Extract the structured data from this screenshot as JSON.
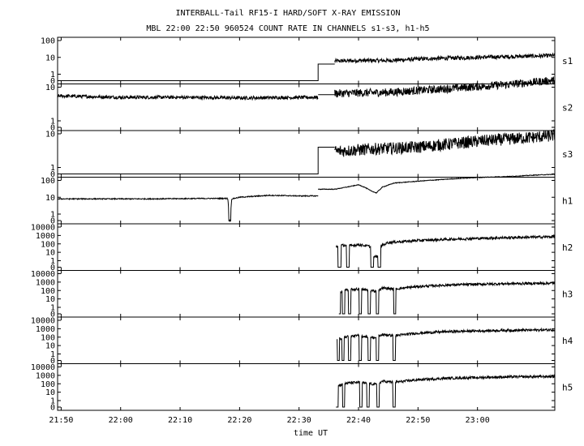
{
  "chart_data": {
    "type": "line",
    "title": "INTERBALL-Tail RF15-I HARD/SOFT X-RAY EMISSION",
    "subtitle": "MBL 22:00 22:50 960524  COUNT RATE IN CHANNELS s1-s3, h1-h5",
    "xlabel": "time UT",
    "x_ticks": [
      "21:50",
      "22:00",
      "22:10",
      "22:20",
      "22:30",
      "22:40",
      "22:50",
      "23:00"
    ],
    "x_range_min": [
      -10.6,
      73.0
    ],
    "y_scale": "log",
    "grid": false,
    "panels": [
      {
        "name": "s1",
        "yticks": [
          "100",
          "10",
          "1",
          "0"
        ],
        "ytick_values": [
          100,
          10,
          1,
          0
        ],
        "segments": [
          {
            "points": [
              [
                -10.6,
                0
              ],
              [
                33.2,
                0
              ],
              [
                33.2,
                4
              ],
              [
                36,
                4
              ]
            ]
          },
          {
            "points": [
              [
                36,
                6
              ],
              [
                40,
                6.5
              ],
              [
                45,
                6.5
              ],
              [
                50,
                8
              ],
              [
                55,
                9
              ],
              [
                60,
                10
              ],
              [
                65,
                11
              ],
              [
                70,
                12
              ],
              [
                73,
                13
              ]
            ],
            "noise": 0.12
          }
        ]
      },
      {
        "name": "s2",
        "yticks": [
          "10",
          "1",
          "0"
        ],
        "ytick_values": [
          10,
          1,
          0
        ],
        "segments": [
          {
            "points": [
              [
                -10.6,
                5.5
              ],
              [
                0,
                5
              ],
              [
                10,
                5
              ],
              [
                20,
                4.8
              ],
              [
                33.2,
                5
              ]
            ],
            "noise": 0.05
          },
          {
            "points": [
              [
                33.2,
                6
              ],
              [
                36,
                6
              ]
            ]
          },
          {
            "points": [
              [
                36,
                6.5
              ],
              [
                45,
                7
              ],
              [
                55,
                9
              ],
              [
                65,
                12
              ],
              [
                73,
                16
              ]
            ],
            "noise": 0.12
          }
        ]
      },
      {
        "name": "s3",
        "yticks": [
          "10",
          "1",
          "0"
        ],
        "ytick_values": [
          10,
          1,
          0
        ],
        "segments": [
          {
            "points": [
              [
                -10.6,
                0
              ],
              [
                33.2,
                0
              ],
              [
                33.2,
                4
              ],
              [
                36,
                4
              ]
            ]
          },
          {
            "points": [
              [
                36,
                3
              ],
              [
                42,
                3.5
              ],
              [
                50,
                4
              ],
              [
                60,
                6
              ],
              [
                70,
                8
              ],
              [
                73,
                9
              ]
            ],
            "noise": 0.18
          }
        ]
      },
      {
        "name": "h1",
        "yticks": [
          "100",
          "10",
          "1",
          "0"
        ],
        "ytick_values": [
          100,
          10,
          1,
          0
        ],
        "segments": [
          {
            "points": [
              [
                -10.6,
                8
              ],
              [
                5,
                8
              ],
              [
                15,
                8.5
              ],
              [
                18,
                8.5
              ],
              [
                18.2,
                0
              ],
              [
                18.5,
                0
              ],
              [
                18.7,
                8
              ],
              [
                20,
                10
              ],
              [
                25,
                13
              ],
              [
                30,
                12
              ],
              [
                33.2,
                12
              ]
            ],
            "noise": 0.03
          },
          {
            "points": [
              [
                33.2,
                30
              ],
              [
                36,
                30
              ],
              [
                38,
                40
              ],
              [
                40,
                55
              ],
              [
                41,
                40
              ],
              [
                42,
                25
              ],
              [
                43,
                18
              ],
              [
                44,
                40
              ],
              [
                46,
                70
              ],
              [
                50,
                90
              ],
              [
                55,
                120
              ],
              [
                60,
                150
              ],
              [
                65,
                170
              ],
              [
                70,
                210
              ],
              [
                73,
                230
              ]
            ],
            "noise": 0.02
          }
        ]
      },
      {
        "name": "h2",
        "yticks": [
          "10000",
          "1000",
          "100",
          "10",
          "1",
          "0"
        ],
        "ytick_values": [
          10000,
          1000,
          100,
          10,
          1,
          0
        ],
        "segments": [
          {
            "points": [
              [
                36.2,
                50
              ],
              [
                37,
                70
              ],
              [
                38.5,
                60
              ],
              [
                40,
                80
              ],
              [
                42,
                50
              ],
              [
                42.3,
                3
              ],
              [
                43.3,
                3
              ],
              [
                43.6,
                50
              ],
              [
                45,
                150
              ],
              [
                50,
                250
              ],
              [
                55,
                350
              ],
              [
                60,
                450
              ],
              [
                65,
                550
              ],
              [
                70,
                650
              ],
              [
                73,
                700
              ]
            ],
            "noise": 0.15,
            "dips": [
              36.8,
              38.2,
              42.3,
              43.5
            ],
            "dip_width": 0.25
          }
        ]
      },
      {
        "name": "h3",
        "yticks": [
          "10000",
          "1000",
          "100",
          "10",
          "1",
          "0"
        ],
        "ytick_values": [
          10000,
          1000,
          100,
          10,
          1,
          0
        ],
        "segments": [
          {
            "points": [
              [
                36.7,
                50
              ],
              [
                38,
                120
              ],
              [
                40,
                150
              ],
              [
                42,
                100
              ],
              [
                43,
                80
              ],
              [
                44,
                200
              ],
              [
                46,
                150
              ],
              [
                50,
                300
              ],
              [
                55,
                450
              ],
              [
                60,
                550
              ],
              [
                65,
                650
              ],
              [
                70,
                700
              ],
              [
                73,
                750
              ]
            ],
            "noise": 0.15,
            "dips": [
              36.8,
              37.5,
              38.5,
              40.3,
              41.8,
              43.2,
              46.1
            ],
            "dip_width": 0.2
          }
        ]
      },
      {
        "name": "h4",
        "yticks": [
          "10000",
          "1000",
          "100",
          "10",
          "1",
          "0"
        ],
        "ytick_values": [
          10000,
          1000,
          100,
          10,
          1,
          0
        ],
        "segments": [
          {
            "points": [
              [
                36.4,
                50
              ],
              [
                38,
                120
              ],
              [
                40,
                150
              ],
              [
                42,
                100
              ],
              [
                43,
                80
              ],
              [
                44,
                200
              ],
              [
                46,
                150
              ],
              [
                50,
                300
              ],
              [
                55,
                450
              ],
              [
                60,
                550
              ],
              [
                65,
                650
              ],
              [
                70,
                700
              ],
              [
                73,
                750
              ]
            ],
            "noise": 0.15,
            "dips": [
              36.6,
              37.4,
              38.5,
              40.3,
              41.8,
              43.2,
              46.0
            ],
            "dip_width": 0.2
          }
        ]
      },
      {
        "name": "h5",
        "yticks": [
          "10000",
          "1000",
          "100",
          "10",
          "1",
          "0"
        ],
        "ytick_values": [
          10000,
          1000,
          100,
          10,
          1,
          0
        ],
        "segments": [
          {
            "points": [
              [
                36.2,
                50
              ],
              [
                38,
                120
              ],
              [
                40,
                150
              ],
              [
                42,
                100
              ],
              [
                43,
                80
              ],
              [
                44,
                200
              ],
              [
                46,
                150
              ],
              [
                50,
                300
              ],
              [
                55,
                450
              ],
              [
                60,
                550
              ],
              [
                65,
                650
              ],
              [
                70,
                700
              ],
              [
                73,
                750
              ]
            ],
            "noise": 0.15,
            "dips": [
              36.4,
              37.5,
              40.4,
              41.6,
              43.3,
              46.0
            ],
            "dip_width": 0.2
          }
        ]
      }
    ]
  }
}
